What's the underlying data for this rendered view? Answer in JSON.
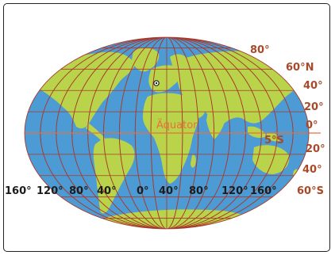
{
  "map": {
    "colors": {
      "ocean": "#4c9bd4",
      "land": "#b9d44a",
      "graticule": "#a8392d",
      "equator": "#e8703a",
      "latitude_labels": "#a84a2a",
      "longitude_labels": "#1c1c1c"
    },
    "latitude_labels": {
      "lat80": "80°",
      "lat60n": "60°N",
      "lat40n": "40°",
      "lat20n": "20°",
      "lat0": "0°",
      "lat20s": "20°",
      "lat40s": "40°",
      "lat60s": "60°S"
    },
    "longitude_labels": [
      "160°",
      "120°",
      "80°",
      "40°",
      "0°",
      "40°",
      "80°",
      "120°",
      "160°"
    ],
    "equator_label": "Äquator",
    "latitude_5s_label": "5°S",
    "marker_icon": "location-circle-icon"
  }
}
